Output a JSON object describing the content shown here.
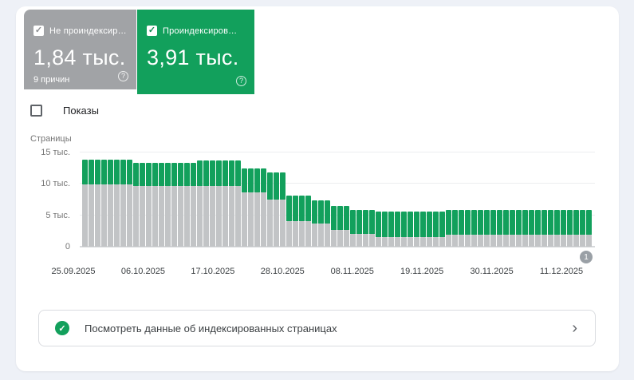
{
  "cards": {
    "not_indexed": {
      "label": "Не проиндексир…",
      "value": "1,84 тыс.",
      "sublabel": "9 причин",
      "checked": true,
      "color": "#a1a3a6"
    },
    "indexed": {
      "label": "Проиндексиров…",
      "value": "3,91 тыс.",
      "checked": true,
      "color": "#12a05c"
    }
  },
  "icons": {
    "help_glyph": "?",
    "check_glyph": "✓",
    "chevron_glyph": "›"
  },
  "impressions_toggle": {
    "label": "Показы",
    "checked": false
  },
  "chart_data": {
    "type": "bar",
    "stacked": true,
    "ylabel": "Страницы",
    "y_ticks": [
      "15 тыс.",
      "10 тыс.",
      "5 тыс.",
      "0"
    ],
    "ylim_thousands": [
      0,
      15
    ],
    "grid": true,
    "x_tick_labels": [
      "25.09.2025",
      "06.10.2025",
      "17.10.2025",
      "28.10.2025",
      "08.11.2025",
      "19.11.2025",
      "30.11.2025",
      "11.12.2025"
    ],
    "annotation_marker": "1",
    "units": "тыс.",
    "series": [
      {
        "name": "Не проиндексировано",
        "color": "#c2c4c6",
        "values": [
          9.9,
          9.9,
          9.9,
          9.9,
          9.9,
          9.9,
          9.9,
          9.9,
          9.65,
          9.65,
          9.65,
          9.65,
          9.65,
          9.65,
          9.65,
          9.65,
          9.65,
          9.65,
          9.65,
          9.65,
          9.65,
          9.65,
          9.65,
          9.65,
          9.65,
          8.6,
          8.6,
          8.6,
          8.6,
          7.5,
          7.5,
          7.5,
          4.05,
          4.05,
          4.05,
          4.05,
          3.65,
          3.65,
          3.65,
          2.7,
          2.7,
          2.7,
          2.0,
          2.0,
          2.0,
          2.0,
          1.55,
          1.55,
          1.55,
          1.55,
          1.55,
          1.55,
          1.55,
          1.55,
          1.55,
          1.55,
          1.55,
          1.85,
          1.85,
          1.85,
          1.85,
          1.85,
          1.85,
          1.85,
          1.85,
          1.85,
          1.85,
          1.85,
          1.85,
          1.85,
          1.85,
          1.85,
          1.85,
          1.85,
          1.85,
          1.85,
          1.85,
          1.85,
          1.85,
          1.85
        ]
      },
      {
        "name": "Проиндексировано",
        "color": "#12a05c",
        "values": [
          3.95,
          3.95,
          3.95,
          3.95,
          3.95,
          3.95,
          3.95,
          3.95,
          3.7,
          3.7,
          3.7,
          3.7,
          3.7,
          3.7,
          3.7,
          3.7,
          3.7,
          3.7,
          4.05,
          4.05,
          4.05,
          4.05,
          4.05,
          4.05,
          4.05,
          3.85,
          3.85,
          3.85,
          3.85,
          4.3,
          4.3,
          4.3,
          4.05,
          4.05,
          4.05,
          4.05,
          3.75,
          3.75,
          3.75,
          3.8,
          3.8,
          3.8,
          3.9,
          3.9,
          3.9,
          3.9,
          4.05,
          4.05,
          4.05,
          4.05,
          4.05,
          4.05,
          4.05,
          4.05,
          4.05,
          4.05,
          4.05,
          3.95,
          3.95,
          3.95,
          3.95,
          3.95,
          3.95,
          3.95,
          3.95,
          3.95,
          3.95,
          3.95,
          3.95,
          3.95,
          3.95,
          3.95,
          3.95,
          3.95,
          3.95,
          3.95,
          3.95,
          3.95,
          3.95,
          3.95
        ]
      }
    ]
  },
  "footer_action": {
    "label": "Посмотреть данные об индексированных страницах"
  }
}
